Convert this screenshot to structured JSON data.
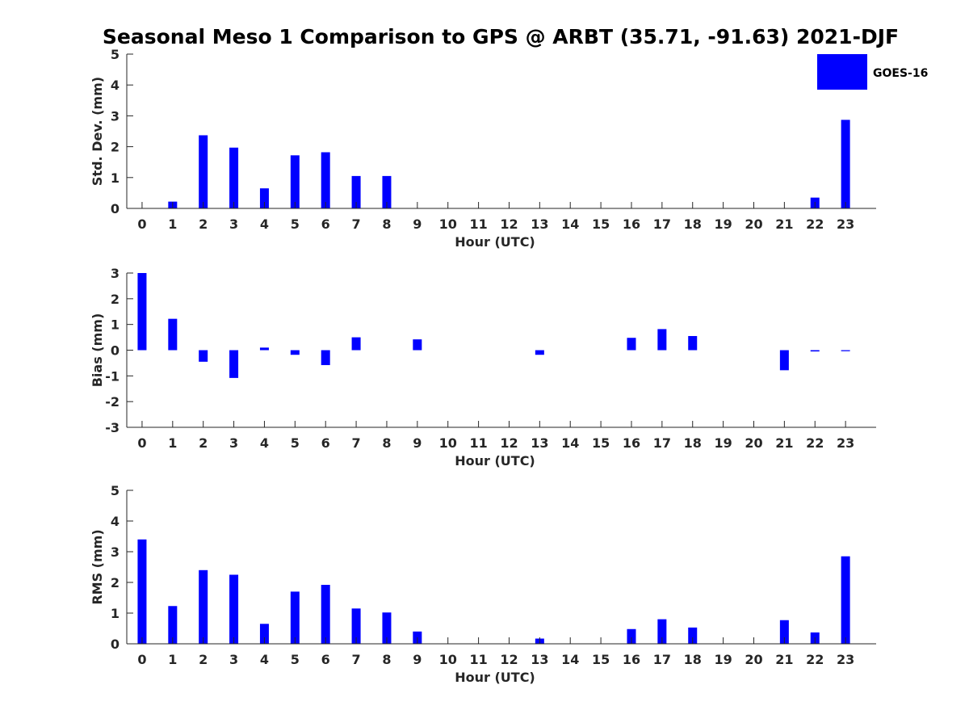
{
  "figure": {
    "title": "Seasonal Meso 1 Comparison to GPS @ ARBT (35.71, -91.63) 2021-DJF",
    "legend": {
      "label": "GOES-16",
      "color": "#0000ff",
      "placement": "top-right"
    }
  },
  "chart_data": [
    {
      "type": "bar",
      "name": "std-dev",
      "xlabel": "Hour (UTC)",
      "ylabel": "Std. Dev. (mm)",
      "ylim": [
        0,
        5
      ],
      "yticks": [
        0,
        1,
        2,
        3,
        4,
        5
      ],
      "categories": [
        "0",
        "1",
        "2",
        "3",
        "4",
        "5",
        "6",
        "7",
        "8",
        "9",
        "10",
        "11",
        "12",
        "13",
        "14",
        "15",
        "16",
        "17",
        "18",
        "19",
        "20",
        "21",
        "22",
        "23"
      ],
      "series": [
        {
          "name": "GOES-16",
          "color": "#0000ff",
          "values": [
            0,
            0.22,
            2.37,
            1.97,
            0.65,
            1.72,
            1.82,
            1.05,
            1.05,
            0,
            0,
            0,
            0,
            0,
            0,
            0,
            0,
            0,
            0,
            0,
            0,
            0,
            0.35,
            2.87
          ]
        }
      ]
    },
    {
      "type": "bar",
      "name": "bias",
      "xlabel": "Hour (UTC)",
      "ylabel": "Bias (mm)",
      "ylim": [
        -3,
        3
      ],
      "yticks": [
        -3,
        -2,
        -1,
        0,
        1,
        2,
        3
      ],
      "categories": [
        "0",
        "1",
        "2",
        "3",
        "4",
        "5",
        "6",
        "7",
        "8",
        "9",
        "10",
        "11",
        "12",
        "13",
        "14",
        "15",
        "16",
        "17",
        "18",
        "19",
        "20",
        "21",
        "22",
        "23"
      ],
      "series": [
        {
          "name": "GOES-16",
          "color": "#0000ff",
          "values": [
            3.0,
            1.22,
            -0.45,
            -1.08,
            0.1,
            -0.18,
            -0.58,
            0.5,
            0,
            0.42,
            0,
            0,
            0,
            -0.18,
            0,
            0,
            0.48,
            0.82,
            0.55,
            0,
            0,
            -0.78,
            -0.05,
            -0.04
          ]
        }
      ]
    },
    {
      "type": "bar",
      "name": "rms",
      "xlabel": "Hour (UTC)",
      "ylabel": "RMS (mm)",
      "ylim": [
        0,
        5
      ],
      "yticks": [
        0,
        1,
        2,
        3,
        4,
        5
      ],
      "categories": [
        "0",
        "1",
        "2",
        "3",
        "4",
        "5",
        "6",
        "7",
        "8",
        "9",
        "10",
        "11",
        "12",
        "13",
        "14",
        "15",
        "16",
        "17",
        "18",
        "19",
        "20",
        "21",
        "22",
        "23"
      ],
      "series": [
        {
          "name": "GOES-16",
          "color": "#0000ff",
          "values": [
            3.4,
            1.23,
            2.4,
            2.25,
            0.65,
            1.7,
            1.92,
            1.15,
            1.02,
            0.4,
            0,
            0,
            0,
            0.17,
            0,
            0,
            0.48,
            0.8,
            0.53,
            0,
            0,
            0.77,
            0.37,
            2.85
          ]
        }
      ]
    }
  ]
}
